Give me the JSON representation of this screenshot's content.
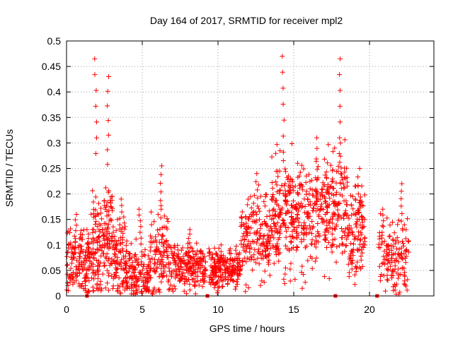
{
  "chart_data": {
    "type": "scatter",
    "title": "Day 164 of 2017, SRMTID for receiver mpl2",
    "xlabel": "GPS time / hours",
    "ylabel": "SRMTID / TECUs",
    "xlim": [
      0,
      24.25
    ],
    "ylim": [
      0,
      0.5
    ],
    "x_ticks": [
      0,
      5,
      10,
      15,
      20
    ],
    "x_tick_labels": [
      "0",
      "5",
      "10",
      "15",
      "20"
    ],
    "y_ticks": [
      0,
      0.05,
      0.1,
      0.15,
      0.2,
      0.25,
      0.3,
      0.35,
      0.4,
      0.45,
      0.5
    ],
    "y_tick_labels": [
      "0",
      "0.05",
      "0.1",
      "0.15",
      "0.2",
      "0.25",
      "0.3",
      "0.35",
      "0.4",
      "0.45",
      "0.5"
    ],
    "grid": true,
    "marker": "+",
    "color": "#ff0000",
    "seed": 164,
    "segments": [
      {
        "x": [
          0.0,
          1.0
        ],
        "center": 0.07,
        "spread": 0.035,
        "n": 90,
        "peak": 0.16
      },
      {
        "x": [
          1.0,
          1.55
        ],
        "center": 0.06,
        "spread": 0.04,
        "n": 55,
        "peak": 0.13
      },
      {
        "x": [
          1.6,
          2.2
        ],
        "center": 0.1,
        "spread": 0.06,
        "n": 80,
        "peak": 0.465
      },
      {
        "x": [
          2.2,
          3.1
        ],
        "center": 0.11,
        "spread": 0.06,
        "n": 110,
        "peak": 0.43
      },
      {
        "x": [
          3.1,
          4.0
        ],
        "center": 0.07,
        "spread": 0.045,
        "n": 95,
        "peak": 0.19
      },
      {
        "x": [
          4.0,
          5.5
        ],
        "center": 0.04,
        "spread": 0.035,
        "n": 130,
        "peak": 0.17
      },
      {
        "x": [
          5.5,
          6.7
        ],
        "center": 0.08,
        "spread": 0.05,
        "n": 110,
        "peak": 0.255
      },
      {
        "x": [
          6.7,
          9.2
        ],
        "center": 0.055,
        "spread": 0.028,
        "n": 220,
        "peak": 0.13
      },
      {
        "x": [
          9.4,
          11.5
        ],
        "center": 0.05,
        "spread": 0.025,
        "n": 200,
        "peak": 0.1
      },
      {
        "x": [
          11.5,
          13.5
        ],
        "center": 0.11,
        "spread": 0.05,
        "n": 170,
        "peak": 0.24
      },
      {
        "x": [
          13.5,
          15.2
        ],
        "center": 0.16,
        "spread": 0.07,
        "n": 190,
        "peak": 0.47
      },
      {
        "x": [
          15.2,
          17.2
        ],
        "center": 0.16,
        "spread": 0.065,
        "n": 190,
        "peak": 0.31
      },
      {
        "x": [
          17.2,
          18.6
        ],
        "center": 0.17,
        "spread": 0.07,
        "n": 140,
        "peak": 0.465
      },
      {
        "x": [
          18.6,
          19.7
        ],
        "center": 0.12,
        "spread": 0.055,
        "n": 110,
        "peak": 0.25
      },
      {
        "x": [
          20.6,
          21.5
        ],
        "center": 0.08,
        "spread": 0.045,
        "n": 60,
        "peak": 0.17
      },
      {
        "x": [
          21.5,
          22.6
        ],
        "center": 0.07,
        "spread": 0.045,
        "n": 80,
        "peak": 0.22
      }
    ],
    "gap_marker_x": [
      1.35,
      9.3,
      17.75,
      20.5
    ]
  }
}
